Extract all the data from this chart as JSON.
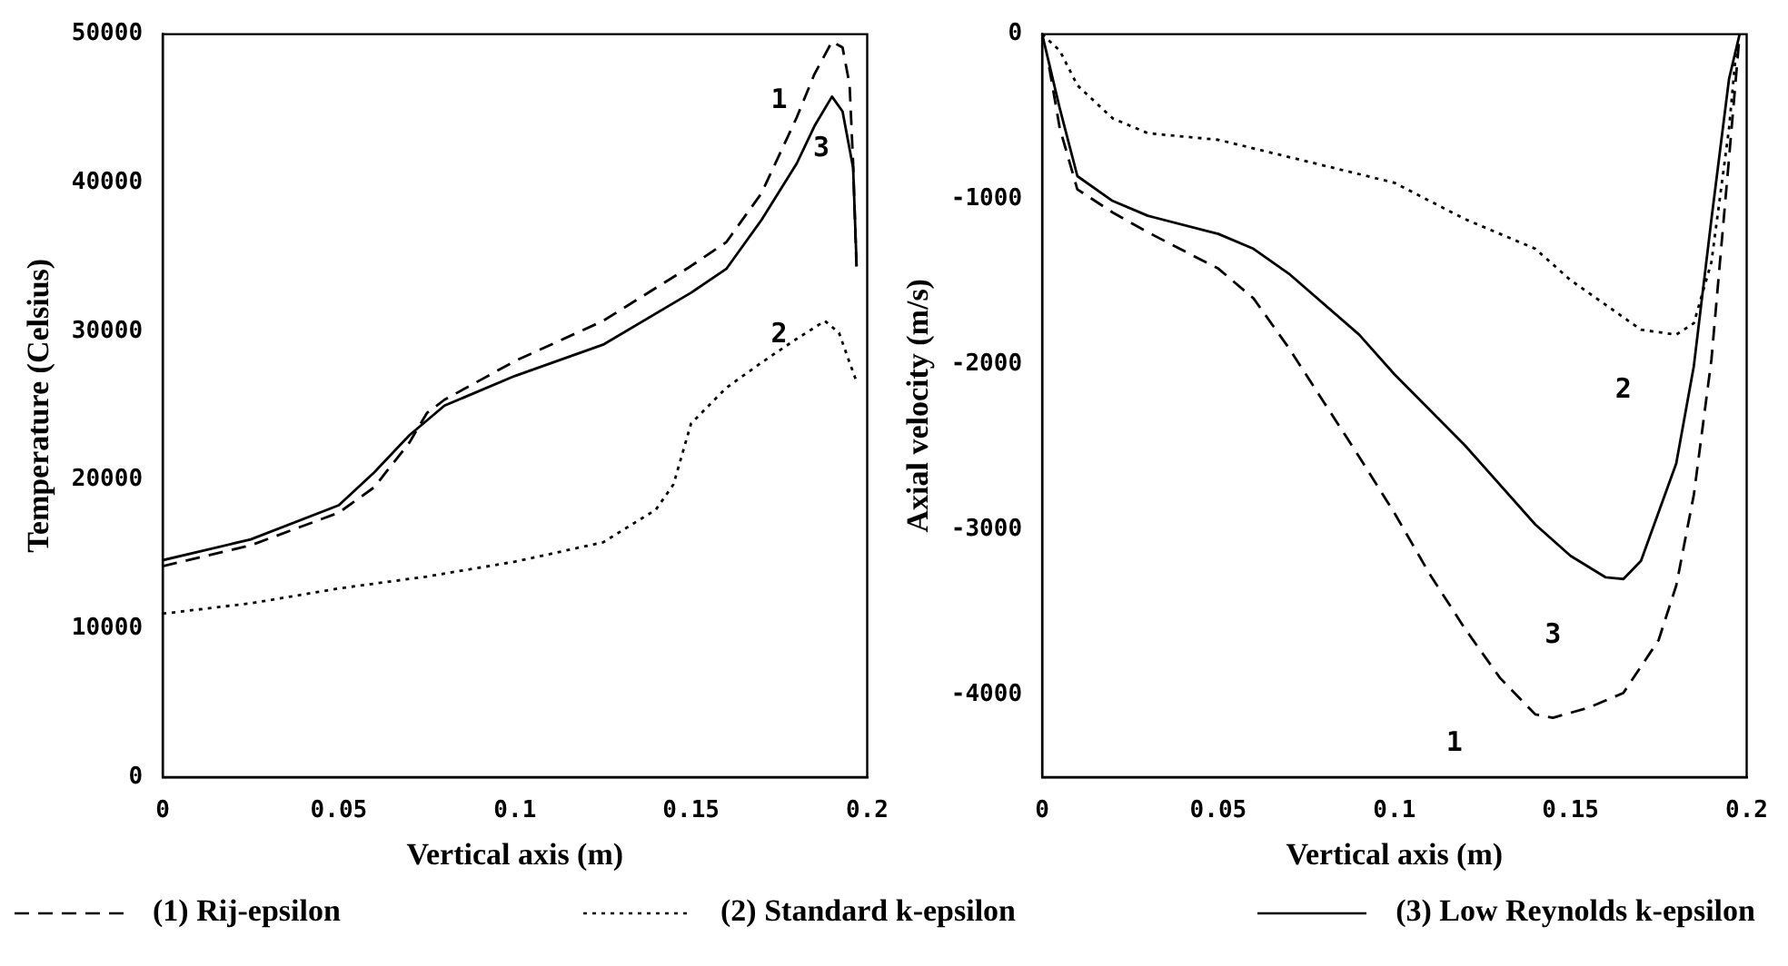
{
  "chart_data": [
    {
      "type": "line",
      "xlabel": "Vertical axis (m)",
      "ylabel": "Temperature (Celsius)",
      "xlim": [
        0,
        0.2
      ],
      "ylim": [
        0,
        50000
      ],
      "xticks": [
        0,
        0.05,
        0.1,
        0.15,
        0.2
      ],
      "yticks": [
        0,
        10000,
        20000,
        30000,
        40000,
        50000
      ],
      "grid": false,
      "legend": "bottom",
      "marker": "none",
      "series": [
        {
          "name": "(1) Rij-epsilon",
          "color": "#000000",
          "line_style": "dashed",
          "x": [
            0,
            0.025,
            0.05,
            0.06,
            0.07,
            0.075,
            0.08,
            0.1,
            0.125,
            0.15,
            0.16,
            0.17,
            0.18,
            0.185,
            0.19,
            0.193,
            0.195,
            0.196,
            0.197
          ],
          "values": [
            14200,
            15600,
            17800,
            19500,
            22500,
            24500,
            25400,
            28000,
            30700,
            34400,
            36000,
            39300,
            44400,
            47300,
            49500,
            49100,
            46600,
            41300,
            34000
          ]
        },
        {
          "name": "(2) Standard k-epsilon",
          "color": "#000000",
          "line_style": "dotted",
          "x": [
            0,
            0.025,
            0.05,
            0.075,
            0.1,
            0.125,
            0.14,
            0.145,
            0.15,
            0.16,
            0.17,
            0.18,
            0.188,
            0.192,
            0.195,
            0.197
          ],
          "values": [
            11000,
            11700,
            12700,
            13500,
            14500,
            15800,
            18000,
            19700,
            23800,
            26200,
            27900,
            29500,
            30700,
            29900,
            27900,
            26600
          ]
        },
        {
          "name": "(3) Low Reynolds k-epsilon",
          "color": "#000000",
          "line_style": "solid",
          "x": [
            0,
            0.025,
            0.05,
            0.06,
            0.07,
            0.08,
            0.1,
            0.125,
            0.15,
            0.16,
            0.17,
            0.18,
            0.185,
            0.19,
            0.193,
            0.196,
            0.197
          ],
          "values": [
            14600,
            16000,
            18300,
            20500,
            23000,
            25000,
            27000,
            29100,
            32600,
            34200,
            37500,
            41300,
            43800,
            45800,
            44800,
            41000,
            34400
          ]
        }
      ],
      "annotations": [
        "1",
        "3",
        "2"
      ]
    },
    {
      "type": "line",
      "xlabel": "Vertical axis (m)",
      "ylabel": "Axial velocity (m/s)",
      "xlim": [
        0,
        0.2
      ],
      "ylim": [
        -4500,
        0
      ],
      "xticks": [
        0,
        0.05,
        0.1,
        0.15,
        0.2
      ],
      "yticks": [
        -4000,
        -3000,
        -2000,
        -1000,
        0
      ],
      "grid": false,
      "marker": "none",
      "series": [
        {
          "color": "#000000",
          "line_style": "dashed",
          "x": [
            0.002,
            0.005,
            0.01,
            0.02,
            0.03,
            0.05,
            0.06,
            0.07,
            0.08,
            0.09,
            0.1,
            0.11,
            0.12,
            0.13,
            0.14,
            0.145,
            0.155,
            0.165,
            0.175,
            0.18,
            0.185,
            0.19,
            0.195,
            0.198
          ],
          "values": [
            -200,
            -570,
            -940,
            -1080,
            -1200,
            -1420,
            -1600,
            -1900,
            -2230,
            -2560,
            -2900,
            -3270,
            -3600,
            -3900,
            -4120,
            -4140,
            -4080,
            -3990,
            -3670,
            -3340,
            -2790,
            -1970,
            -750,
            0
          ]
        },
        {
          "color": "#000000",
          "line_style": "dotted",
          "x": [
            0,
            0.005,
            0.01,
            0.02,
            0.03,
            0.05,
            0.075,
            0.1,
            0.12,
            0.14,
            0.15,
            0.16,
            0.17,
            0.18,
            0.185,
            0.19,
            0.195,
            0.197
          ],
          "values": [
            0,
            -100,
            -310,
            -510,
            -600,
            -640,
            -770,
            -900,
            -1120,
            -1300,
            -1490,
            -1640,
            -1790,
            -1820,
            -1750,
            -1380,
            -570,
            -100
          ]
        },
        {
          "color": "#000000",
          "line_style": "solid",
          "x": [
            0,
            0.005,
            0.01,
            0.02,
            0.03,
            0.05,
            0.06,
            0.07,
            0.09,
            0.1,
            0.12,
            0.14,
            0.15,
            0.16,
            0.165,
            0.17,
            0.18,
            0.185,
            0.19,
            0.195,
            0.198
          ],
          "values": [
            0,
            -450,
            -860,
            -1010,
            -1100,
            -1210,
            -1300,
            -1450,
            -1820,
            -2060,
            -2490,
            -2970,
            -3160,
            -3290,
            -3300,
            -3190,
            -2600,
            -2010,
            -1120,
            -270,
            0
          ]
        }
      ],
      "annotations": [
        "2",
        "3",
        "1"
      ]
    }
  ]
}
